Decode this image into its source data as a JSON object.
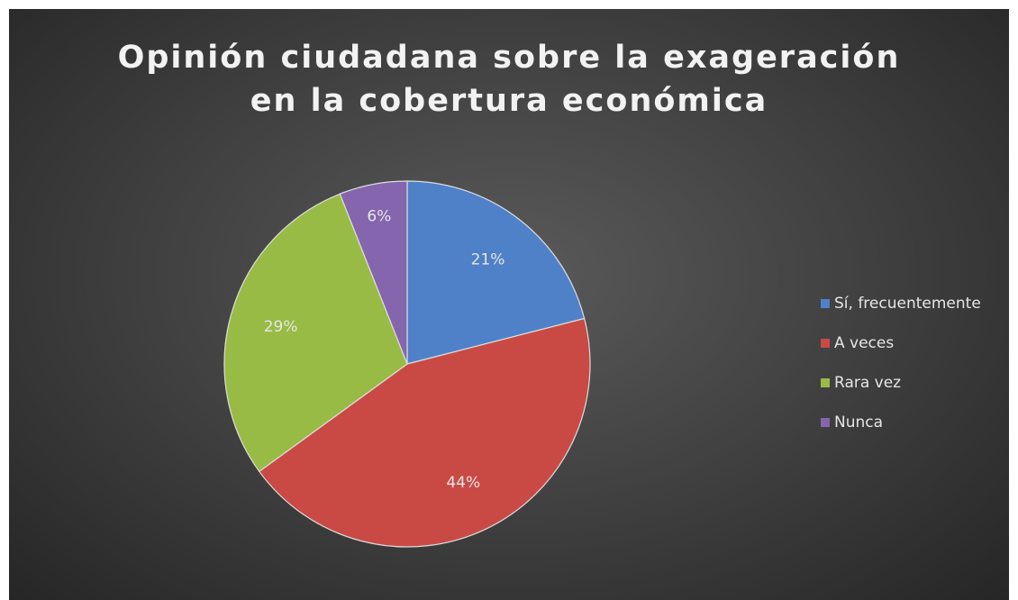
{
  "chart_data": {
    "type": "pie",
    "title": "Opinión ciudadana sobre la exageración en la cobertura económica",
    "categories": [
      "Sí, frecuentemente",
      "A veces",
      "Rara vez",
      "Nunca"
    ],
    "values": [
      21,
      44,
      29,
      6
    ],
    "value_labels": [
      "21%",
      "44%",
      "29%",
      "6%"
    ],
    "colors": [
      "#4f81c9",
      "#c94a44",
      "#98bb45",
      "#8565ad"
    ],
    "legend": "right"
  }
}
